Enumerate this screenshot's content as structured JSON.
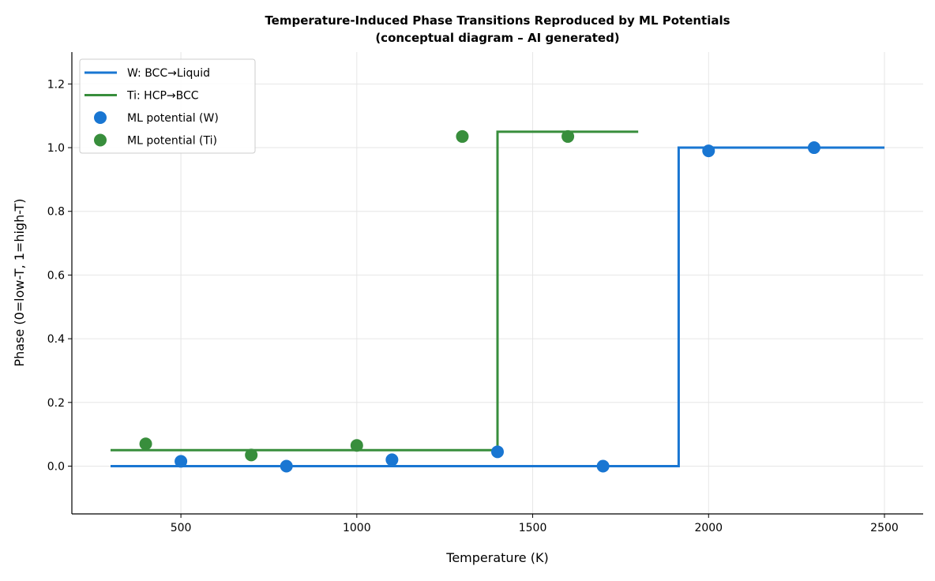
{
  "chart_data": {
    "type": "line",
    "title": "Temperature-Induced Phase Transitions Reproduced by ML Potentials",
    "subtitle": "(conceptual diagram – AI generated)",
    "xlabel": "Temperature (K)",
    "ylabel": "Phase (0=low-T, 1=high-T)",
    "xlim": [
      190,
      2610
    ],
    "ylim": [
      -0.15,
      1.3
    ],
    "xticks": [
      500,
      1000,
      1500,
      2000,
      2500
    ],
    "yticks": [
      0.0,
      0.2,
      0.4,
      0.6,
      0.8,
      1.0,
      1.2
    ],
    "grid": true,
    "legend_position": "top-left",
    "series": [
      {
        "name": "W: BCC→Liquid",
        "kind": "step",
        "color": "#1976d2",
        "x": [
          300,
          1915,
          1915,
          2500
        ],
        "y": [
          0,
          0,
          1.0,
          1.0
        ]
      },
      {
        "name": "Ti: HCP→BCC",
        "kind": "step",
        "color": "#388e3c",
        "x": [
          300,
          1400,
          1400,
          1800
        ],
        "y": [
          0.05,
          0.05,
          1.05,
          1.05
        ]
      },
      {
        "name": "ML potential (W)",
        "kind": "scatter",
        "color": "#1976d2",
        "x": [
          500,
          800,
          1100,
          1400,
          1700,
          2000,
          2300
        ],
        "y": [
          0.015,
          0.0,
          0.02,
          0.045,
          0.0,
          0.99,
          1.0
        ]
      },
      {
        "name": "ML potential (Ti)",
        "kind": "scatter",
        "color": "#388e3c",
        "x": [
          400,
          700,
          1000,
          1300,
          1600
        ],
        "y": [
          0.07,
          0.035,
          0.065,
          1.035,
          1.035
        ]
      }
    ]
  }
}
